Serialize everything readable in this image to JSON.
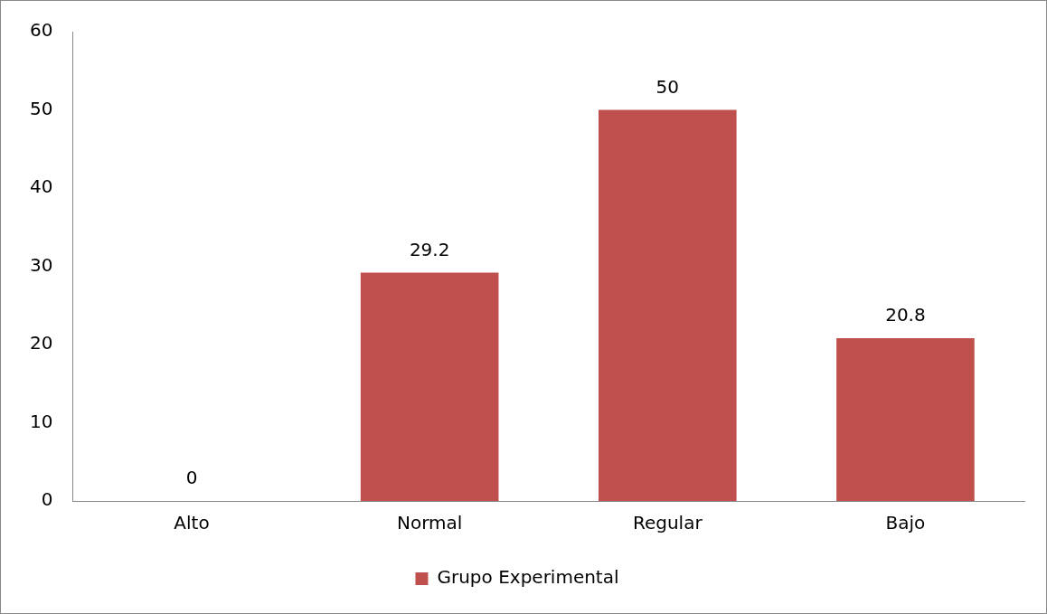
{
  "chart_data": {
    "type": "bar",
    "categories": [
      "Alto",
      "Normal",
      "Regular",
      "Bajo"
    ],
    "series": [
      {
        "name": "Grupo Experimental",
        "color": "#c0504d",
        "values": [
          0,
          29.2,
          50,
          20.8
        ]
      }
    ],
    "ylim": [
      0,
      60
    ],
    "yticks": [
      0,
      10,
      20,
      30,
      40,
      50,
      60
    ],
    "grid": false,
    "legend": "bottom",
    "data_labels": true
  }
}
